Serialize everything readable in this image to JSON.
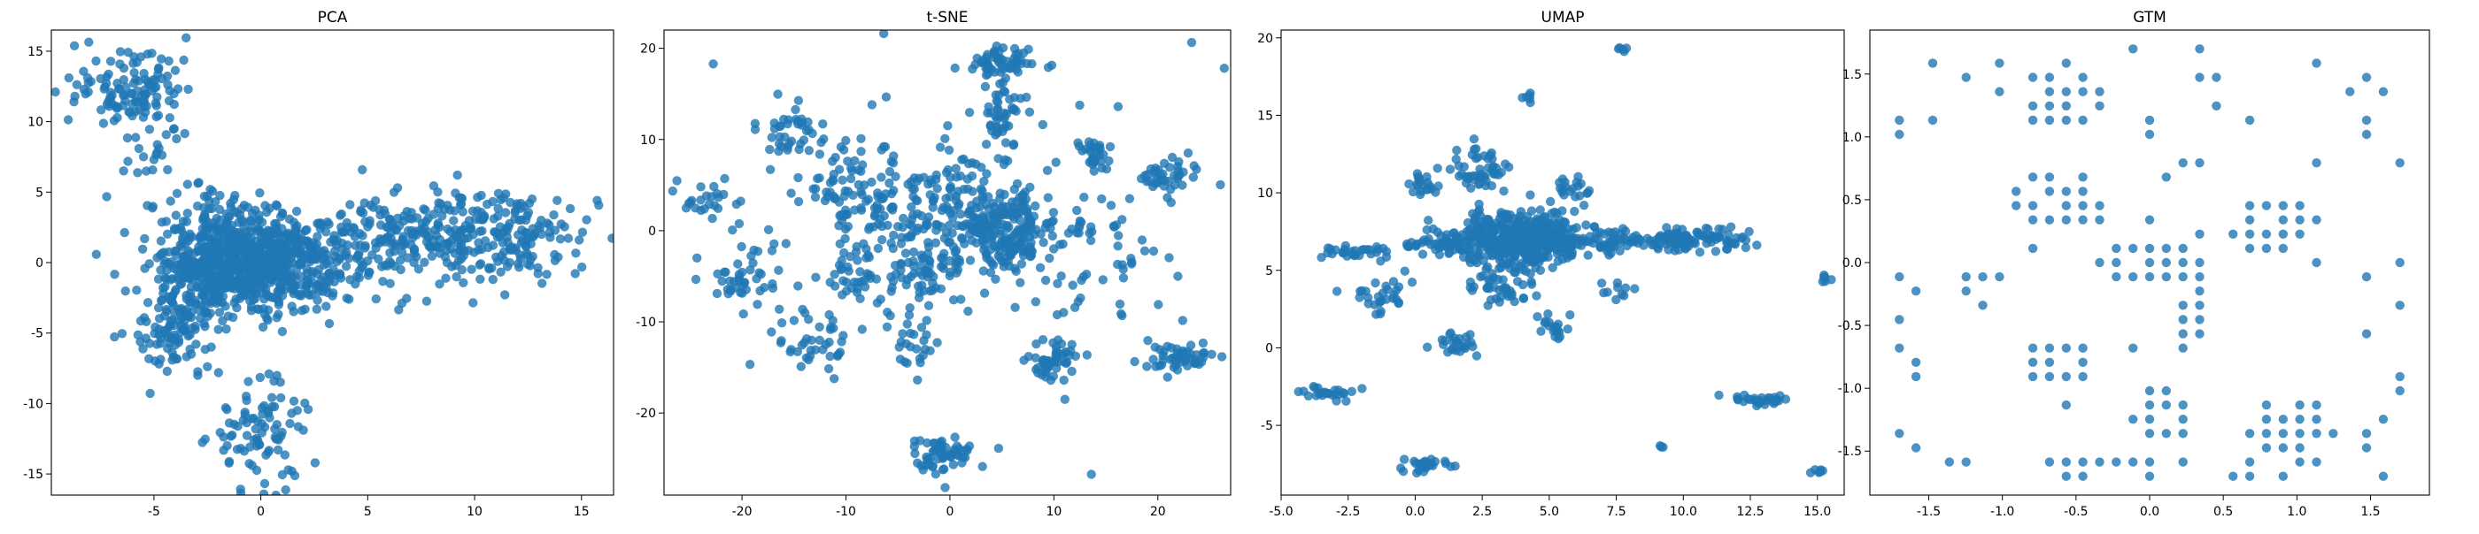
{
  "figure": {
    "background": "#ffffff",
    "point_color": "#1f77b4"
  },
  "chart_data": [
    {
      "type": "scatter",
      "title": "PCA",
      "xlabel": "",
      "ylabel": "",
      "xlim": [
        -9.8,
        16.5
      ],
      "ylim": [
        -16.5,
        16.5
      ],
      "xticks": [
        -5,
        0,
        5,
        10,
        15
      ],
      "yticks": [
        -15,
        -10,
        -5,
        0,
        5,
        10,
        15
      ],
      "grid": false,
      "legend": "none",
      "clusters": [
        {
          "x": 0,
          "y": 0,
          "sx": 2.2,
          "sy": 1.6,
          "n": 650
        },
        {
          "x": -2.5,
          "y": -1,
          "sx": 1.1,
          "sy": 1.8,
          "n": 160
        },
        {
          "x": -4,
          "y": -4.8,
          "sx": 0.9,
          "sy": 1.5,
          "n": 110
        },
        {
          "x": -5,
          "y": 9.5,
          "sx": 1.0,
          "sy": 3.5,
          "n": 70
        },
        {
          "x": -6.5,
          "y": 12.5,
          "sx": 1.3,
          "sy": 1.2,
          "n": 80
        },
        {
          "x": -1.5,
          "y": 3.2,
          "sx": 1.3,
          "sy": 1.3,
          "n": 70
        },
        {
          "x": 0,
          "y": -12.2,
          "sx": 1.2,
          "sy": 1.9,
          "n": 90
        },
        {
          "x": 8,
          "y": 2.0,
          "sx": 3.0,
          "sy": 1.4,
          "n": 280
        },
        {
          "x": 12.5,
          "y": 1.5,
          "sx": 1.6,
          "sy": 1.8,
          "n": 80
        }
      ]
    },
    {
      "type": "scatter",
      "title": "t-SNE",
      "xlabel": "",
      "ylabel": "",
      "xlim": [
        -27.5,
        27
      ],
      "ylim": [
        -29,
        22
      ],
      "xticks": [
        -20,
        -10,
        0,
        10,
        20
      ],
      "yticks": [
        -20,
        -10,
        0,
        10,
        20
      ],
      "grid": false,
      "legend": "none",
      "clusters": [
        {
          "x": 5,
          "y": 0,
          "sx": 2.6,
          "sy": 2.2,
          "n": 220
        },
        {
          "x": -1,
          "y": 3,
          "sx": 3.0,
          "sy": 3.0,
          "n": 90
        },
        {
          "x": -9,
          "y": 4,
          "sx": 2.5,
          "sy": 3.0,
          "n": 90
        },
        {
          "x": 5,
          "y": 13,
          "sx": 1.0,
          "sy": 2.5,
          "n": 50
        },
        {
          "x": 5,
          "y": 18.5,
          "sx": 1.6,
          "sy": 1.0,
          "n": 50
        },
        {
          "x": -1,
          "y": -24.5,
          "sx": 1.5,
          "sy": 1.0,
          "n": 60
        },
        {
          "x": 10,
          "y": -14.5,
          "sx": 1.2,
          "sy": 1.1,
          "n": 50
        },
        {
          "x": 22,
          "y": -13.8,
          "sx": 2.0,
          "sy": 0.7,
          "n": 50
        },
        {
          "x": 21,
          "y": 6,
          "sx": 1.2,
          "sy": 1.0,
          "n": 40
        },
        {
          "x": 14,
          "y": 8.5,
          "sx": 0.8,
          "sy": 1.0,
          "n": 30
        },
        {
          "x": -23,
          "y": 3,
          "sx": 1.5,
          "sy": 1.0,
          "n": 25
        },
        {
          "x": -20,
          "y": -5,
          "sx": 1.8,
          "sy": 2.0,
          "n": 40
        },
        {
          "x": -13,
          "y": -12,
          "sx": 2.0,
          "sy": 1.5,
          "n": 40
        },
        {
          "x": -15,
          "y": 11,
          "sx": 1.5,
          "sy": 1.5,
          "n": 35
        },
        {
          "x": -3.5,
          "y": -12.5,
          "sx": 1.0,
          "sy": 1.0,
          "n": 20
        },
        {
          "x": 15,
          "y": -2,
          "sx": 3.0,
          "sy": 3.0,
          "n": 40
        },
        {
          "x": -2,
          "y": -4,
          "sx": 1.5,
          "sy": 2.0,
          "n": 50
        },
        {
          "x": -8,
          "y": -5,
          "sx": 2.0,
          "sy": 2.0,
          "n": 40
        },
        {
          "x": 0,
          "y": 0,
          "sx": 12.0,
          "sy": 9.0,
          "n": 120
        }
      ]
    },
    {
      "type": "scatter",
      "title": "UMAP",
      "xlabel": "",
      "ylabel": "",
      "xlim": [
        -5,
        16
      ],
      "ylim": [
        -9.5,
        20.5
      ],
      "xticks": [
        -5.0,
        -2.5,
        0.0,
        2.5,
        5.0,
        7.5,
        10.0,
        12.5,
        15.0
      ],
      "yticks": [
        -5,
        0,
        5,
        10,
        15,
        20
      ],
      "grid": false,
      "legend": "none",
      "clusters": [
        {
          "x": 4,
          "y": 7,
          "sx": 1.3,
          "sy": 0.9,
          "n": 450
        },
        {
          "x": 2.3,
          "y": 11.5,
          "sx": 0.5,
          "sy": 0.6,
          "n": 50
        },
        {
          "x": 10,
          "y": 7,
          "sx": 1.3,
          "sy": 0.4,
          "n": 110
        },
        {
          "x": 0.8,
          "y": 6.6,
          "sx": 0.8,
          "sy": 0.2,
          "n": 40
        },
        {
          "x": -2.3,
          "y": 6.2,
          "sx": 0.8,
          "sy": 0.2,
          "n": 30
        },
        {
          "x": -1.5,
          "y": 3.3,
          "sx": 0.5,
          "sy": 0.6,
          "n": 30
        },
        {
          "x": 0.2,
          "y": 10.5,
          "sx": 0.4,
          "sy": 0.3,
          "n": 20
        },
        {
          "x": 1.5,
          "y": 0.2,
          "sx": 0.4,
          "sy": 0.4,
          "n": 25
        },
        {
          "x": 0.4,
          "y": -7.6,
          "sx": 0.4,
          "sy": 0.3,
          "n": 25
        },
        {
          "x": -3.2,
          "y": -2.9,
          "sx": 0.5,
          "sy": 0.2,
          "n": 25
        },
        {
          "x": 13,
          "y": -3.4,
          "sx": 0.6,
          "sy": 0.2,
          "n": 30
        },
        {
          "x": 5.2,
          "y": 1.3,
          "sx": 0.3,
          "sy": 0.6,
          "n": 20
        },
        {
          "x": 5.8,
          "y": 10.2,
          "sx": 0.5,
          "sy": 0.3,
          "n": 20
        },
        {
          "x": 7.5,
          "y": 3.8,
          "sx": 0.3,
          "sy": 0.3,
          "n": 10
        },
        {
          "x": 15.3,
          "y": 4.5,
          "sx": 0.15,
          "sy": 0.15,
          "n": 6
        },
        {
          "x": 4.2,
          "y": 16.2,
          "sx": 0.15,
          "sy": 0.15,
          "n": 6
        },
        {
          "x": 7.7,
          "y": 19.3,
          "sx": 0.1,
          "sy": 0.1,
          "n": 5
        },
        {
          "x": 15.0,
          "y": -8.0,
          "sx": 0.15,
          "sy": 0.15,
          "n": 6
        },
        {
          "x": 9.2,
          "y": -6.4,
          "sx": 0.05,
          "sy": 0.05,
          "n": 3
        },
        {
          "x": 3.2,
          "y": 3.8,
          "sx": 0.6,
          "sy": 0.5,
          "n": 40
        },
        {
          "x": 7.2,
          "y": 6.8,
          "sx": 0.5,
          "sy": 0.4,
          "n": 30
        }
      ]
    },
    {
      "type": "scatter",
      "title": "GTM",
      "xlabel": "",
      "ylabel": "",
      "xlim": [
        -1.9,
        1.9
      ],
      "ylim": [
        -1.85,
        1.85
      ],
      "xticks": [
        -1.5,
        -1.0,
        -0.5,
        0.0,
        0.5,
        1.0,
        1.5
      ],
      "yticks": [
        -1.5,
        -1.0,
        -0.5,
        0.0,
        0.5,
        1.0,
        1.5
      ],
      "grid": false,
      "legend": "none",
      "grid_points": {
        "min": -1.7,
        "max": 1.7,
        "steps": 31
      },
      "dense": [
        {
          "x": 0.0,
          "y": 0.0,
          "rx": 0.45,
          "ry": 0.15
        },
        {
          "x": 0.8,
          "y": 0.3,
          "rx": 0.35,
          "ry": 0.2
        },
        {
          "x": -0.6,
          "y": 0.5,
          "rx": 0.35,
          "ry": 0.25
        },
        {
          "x": -0.6,
          "y": -0.8,
          "rx": 0.25,
          "ry": 0.2
        },
        {
          "x": 0.3,
          "y": -0.5,
          "rx": 0.1,
          "ry": 0.35
        },
        {
          "x": -0.6,
          "y": 1.3,
          "rx": 0.3,
          "ry": 0.3
        },
        {
          "x": 0.1,
          "y": -1.2,
          "rx": 0.25,
          "ry": 0.2
        },
        {
          "x": 0.9,
          "y": -1.3,
          "rx": 0.25,
          "ry": 0.2
        },
        {
          "x": -1.3,
          "y": -1.6,
          "rx": 0.15,
          "ry": 0.1
        },
        {
          "x": 1.5,
          "y": 1.3,
          "rx": 0.15,
          "ry": 0.2
        },
        {
          "x": -1.1,
          "y": -0.1,
          "rx": 0.15,
          "ry": 0.1
        }
      ]
    }
  ]
}
